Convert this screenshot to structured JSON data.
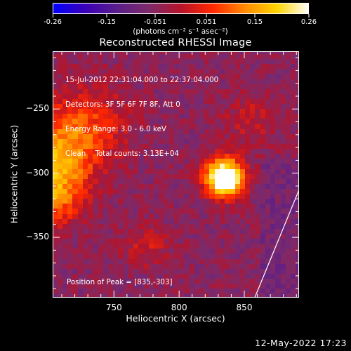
{
  "colorbar": {
    "ticks": [
      "-0.26",
      "-0.15",
      "-0.051",
      "0.051",
      "0.15",
      "0.26"
    ],
    "units": "(photons cm⁻² s⁻¹ asec⁻²)",
    "range": [
      -0.26,
      0.26
    ],
    "colormap": [
      "#0000ff",
      "#3a00b8",
      "#5a1e8a",
      "#7d2a6a",
      "#b5142a",
      "#ff2800",
      "#ff8a00",
      "#ffd400",
      "#ffffff"
    ]
  },
  "info_lines": [
    "15-Jul-2012 22:31:04.000 to 22:37:04.000",
    "Detectors: 3F 5F 6F 7F 8F, Att 0",
    "Energy Range: 3.0 - 6.0 keV",
    "Clean    Total counts: 3.13E+04"
  ],
  "peak_label": "Position of Peak = [835,-303]",
  "footer_timestamp": "12-May-2022 17:23",
  "chart_data": {
    "type": "heatmap",
    "title": "Reconstructed RHESSI Image",
    "xlabel": "Heliocentric X (arcsec)",
    "ylabel": "Heliocentric Y (arcsec)",
    "xlim": [
      703,
      892
    ],
    "ylim": [
      -397,
      -205
    ],
    "xticks": [
      750,
      800,
      850
    ],
    "yticks": [
      -250,
      -300,
      -350
    ],
    "xtick_labels": [
      "750",
      "800",
      "850"
    ],
    "ytick_labels": [
      "-250",
      "-300",
      "-350"
    ],
    "grid": false,
    "peak": {
      "x": 835,
      "y": -303,
      "value": 0.26
    },
    "sources": [
      {
        "x": 835,
        "y": -303,
        "sigma": 10,
        "amplitude": 0.42
      },
      {
        "x": 704,
        "y": -289,
        "sigma": 22,
        "amplitude": 0.18
      },
      {
        "x": 704,
        "y": -320,
        "sigma": 15,
        "amplitude": 0.12
      },
      {
        "x": 730,
        "y": -260,
        "sigma": 22,
        "amplitude": 0.1
      },
      {
        "x": 855,
        "y": -258,
        "sigma": 15,
        "amplitude": 0.06
      },
      {
        "x": 775,
        "y": -355,
        "sigma": 12,
        "amplitude": 0.07
      }
    ],
    "limb_line": {
      "x1": 858,
      "y1": -397,
      "x2": 892,
      "y2": -313
    }
  }
}
